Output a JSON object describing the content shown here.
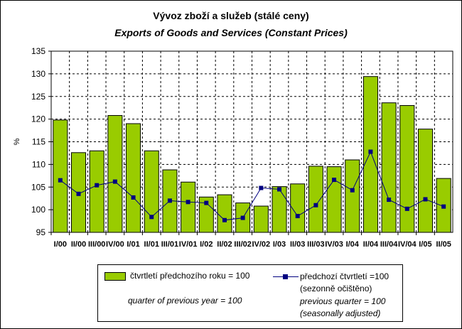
{
  "chart_data": {
    "type": "bar",
    "title": "Vývoz zboží a služeb (stálé ceny)",
    "subtitle": "Exports of Goods and Services (Constant Prices)",
    "ylabel": "%",
    "ylim": [
      95,
      135
    ],
    "yticks": [
      95,
      100,
      105,
      110,
      115,
      120,
      125,
      130,
      135
    ],
    "grid": true,
    "categories": [
      "I/00",
      "II/00",
      "III/00",
      "IV/00",
      "I/01",
      "II/01",
      "III/01",
      "IV/01",
      "I/02",
      "II/02",
      "III/02",
      "IV/02",
      "I/03",
      "II/03",
      "III/03",
      "IV/03",
      "I/04",
      "II/04",
      "III/04",
      "IV/04",
      "I/05",
      "II/05"
    ],
    "series": [
      {
        "name": "čtvrtletí předchozího roku = 100",
        "name_en": "quarter of previous year = 100",
        "kind": "bar",
        "color": "#99cc00",
        "values": [
          119.8,
          112.6,
          113.0,
          120.8,
          119.0,
          113.0,
          108.8,
          106.1,
          102.8,
          103.3,
          101.5,
          100.8,
          105.1,
          105.7,
          109.6,
          109.5,
          111.0,
          129.4,
          123.6,
          123.0,
          117.8,
          106.9
        ]
      },
      {
        "name": "předchozí čtvrtletí =100",
        "name_2": "(sezonně očištěno)",
        "name_en": "previous quarter = 100",
        "name_en_2": "(seasonally adjusted)",
        "kind": "line",
        "color": "#000080",
        "values": [
          106.5,
          103.5,
          105.4,
          106.2,
          102.7,
          98.4,
          102.0,
          101.7,
          101.5,
          97.7,
          98.2,
          104.8,
          104.5,
          98.6,
          101.0,
          106.6,
          104.3,
          112.8,
          102.2,
          100.2,
          102.3,
          100.7
        ]
      }
    ],
    "legend": "bottom"
  }
}
